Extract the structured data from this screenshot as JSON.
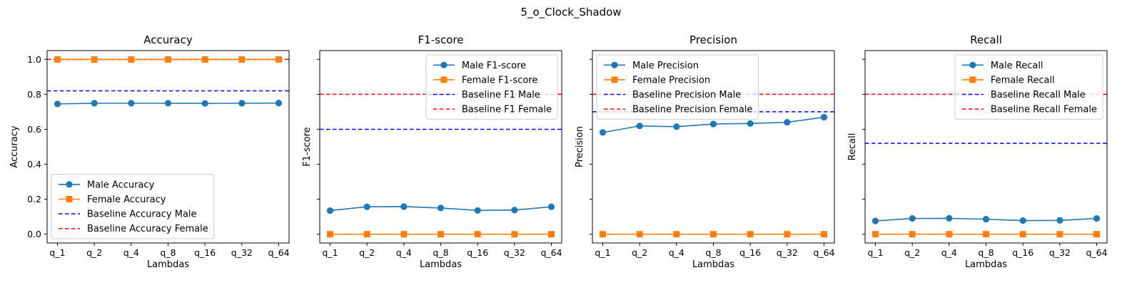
{
  "figure": {
    "suptitle": "5_o_Clock_Shadow"
  },
  "colors": {
    "male": "#1f77b4",
    "female": "#ff7f0e",
    "baseline_male": "#0000ff",
    "baseline_female": "#ff0000",
    "legend_border": "#cccccc"
  },
  "chart_data": [
    {
      "type": "line",
      "title": "Accuracy",
      "xlabel": "Lambdas",
      "ylabel": "Accuracy",
      "categories": [
        "q_1",
        "q_2",
        "q_4",
        "q_8",
        "q_16",
        "q_32",
        "q_64"
      ],
      "ylim": [
        -0.05,
        1.05
      ],
      "yticks": [
        0.0,
        0.2,
        0.4,
        0.6,
        0.8,
        1.0
      ],
      "ytick_labels": [
        "0.0",
        "0.2",
        "0.4",
        "0.6",
        "0.8",
        "1.0"
      ],
      "legend_position": "lower-left",
      "series": [
        {
          "name": "Male Accuracy",
          "marker": "circle",
          "color_key": "male",
          "values": [
            0.745,
            0.749,
            0.749,
            0.749,
            0.748,
            0.749,
            0.75
          ]
        },
        {
          "name": "Female Accuracy",
          "marker": "square",
          "color_key": "female",
          "values": [
            0.999,
            0.999,
            0.999,
            0.999,
            0.999,
            0.999,
            0.999
          ]
        }
      ],
      "baselines": [
        {
          "name": "Baseline Accuracy Male",
          "color_key": "baseline_male",
          "value": 0.82
        },
        {
          "name": "Baseline Accuracy Female",
          "color_key": "baseline_female",
          "value": 1.0
        }
      ]
    },
    {
      "type": "line",
      "title": "F1-score",
      "xlabel": "Lambdas",
      "ylabel": "F1-score",
      "categories": [
        "q_1",
        "q_2",
        "q_4",
        "q_8",
        "q_16",
        "q_32",
        "q_64"
      ],
      "ylim": [
        -0.05,
        1.05
      ],
      "yticks": [
        0.0,
        0.2,
        0.4,
        0.6,
        0.8,
        1.0
      ],
      "ytick_labels": [
        "",
        "",
        "",
        "",
        "",
        ""
      ],
      "legend_position": "upper-right",
      "series": [
        {
          "name": "Male F1-score",
          "marker": "circle",
          "color_key": "male",
          "values": [
            0.135,
            0.157,
            0.158,
            0.15,
            0.136,
            0.138,
            0.157
          ]
        },
        {
          "name": "Female F1-score",
          "marker": "square",
          "color_key": "female",
          "values": [
            0.0,
            0.0,
            0.0,
            0.0,
            0.0,
            0.0,
            0.0
          ]
        }
      ],
      "baselines": [
        {
          "name": "Baseline F1 Male",
          "color_key": "baseline_male",
          "value": 0.6
        },
        {
          "name": "Baseline F1 Female",
          "color_key": "baseline_female",
          "value": 0.8
        }
      ]
    },
    {
      "type": "line",
      "title": "Precision",
      "xlabel": "Lambdas",
      "ylabel": "Precision",
      "categories": [
        "q_1",
        "q_2",
        "q_4",
        "q_8",
        "q_16",
        "q_32",
        "q_64"
      ],
      "ylim": [
        -0.05,
        1.05
      ],
      "yticks": [
        0.0,
        0.2,
        0.4,
        0.6,
        0.8,
        1.0
      ],
      "ytick_labels": [
        "",
        "",
        "",
        "",
        "",
        ""
      ],
      "legend_position": "upper-left",
      "series": [
        {
          "name": "Male Precision",
          "marker": "circle",
          "color_key": "male",
          "values": [
            0.582,
            0.619,
            0.615,
            0.63,
            0.633,
            0.64,
            0.669
          ]
        },
        {
          "name": "Female Precision",
          "marker": "square",
          "color_key": "female",
          "values": [
            0.0,
            0.0,
            0.0,
            0.0,
            0.0,
            0.0,
            0.0
          ]
        }
      ],
      "baselines": [
        {
          "name": "Baseline Precision Male",
          "color_key": "baseline_male",
          "value": 0.7
        },
        {
          "name": "Baseline Precision Female",
          "color_key": "baseline_female",
          "value": 0.8
        }
      ]
    },
    {
      "type": "line",
      "title": "Recall",
      "xlabel": "Lambdas",
      "ylabel": "Recall",
      "categories": [
        "q_1",
        "q_2",
        "q_4",
        "q_8",
        "q_16",
        "q_32",
        "q_64"
      ],
      "ylim": [
        -0.05,
        1.05
      ],
      "yticks": [
        0.0,
        0.2,
        0.4,
        0.6,
        0.8,
        1.0
      ],
      "ytick_labels": [
        "",
        "",
        "",
        "",
        "",
        ""
      ],
      "legend_position": "upper-right",
      "series": [
        {
          "name": "Male Recall",
          "marker": "circle",
          "color_key": "male",
          "values": [
            0.076,
            0.09,
            0.091,
            0.086,
            0.078,
            0.079,
            0.09
          ]
        },
        {
          "name": "Female Recall",
          "marker": "square",
          "color_key": "female",
          "values": [
            0.0,
            0.0,
            0.0,
            0.0,
            0.0,
            0.0,
            0.0
          ]
        }
      ],
      "baselines": [
        {
          "name": "Baseline Recall Male",
          "color_key": "baseline_male",
          "value": 0.52
        },
        {
          "name": "Baseline Recall Female",
          "color_key": "baseline_female",
          "value": 0.8
        }
      ]
    }
  ]
}
